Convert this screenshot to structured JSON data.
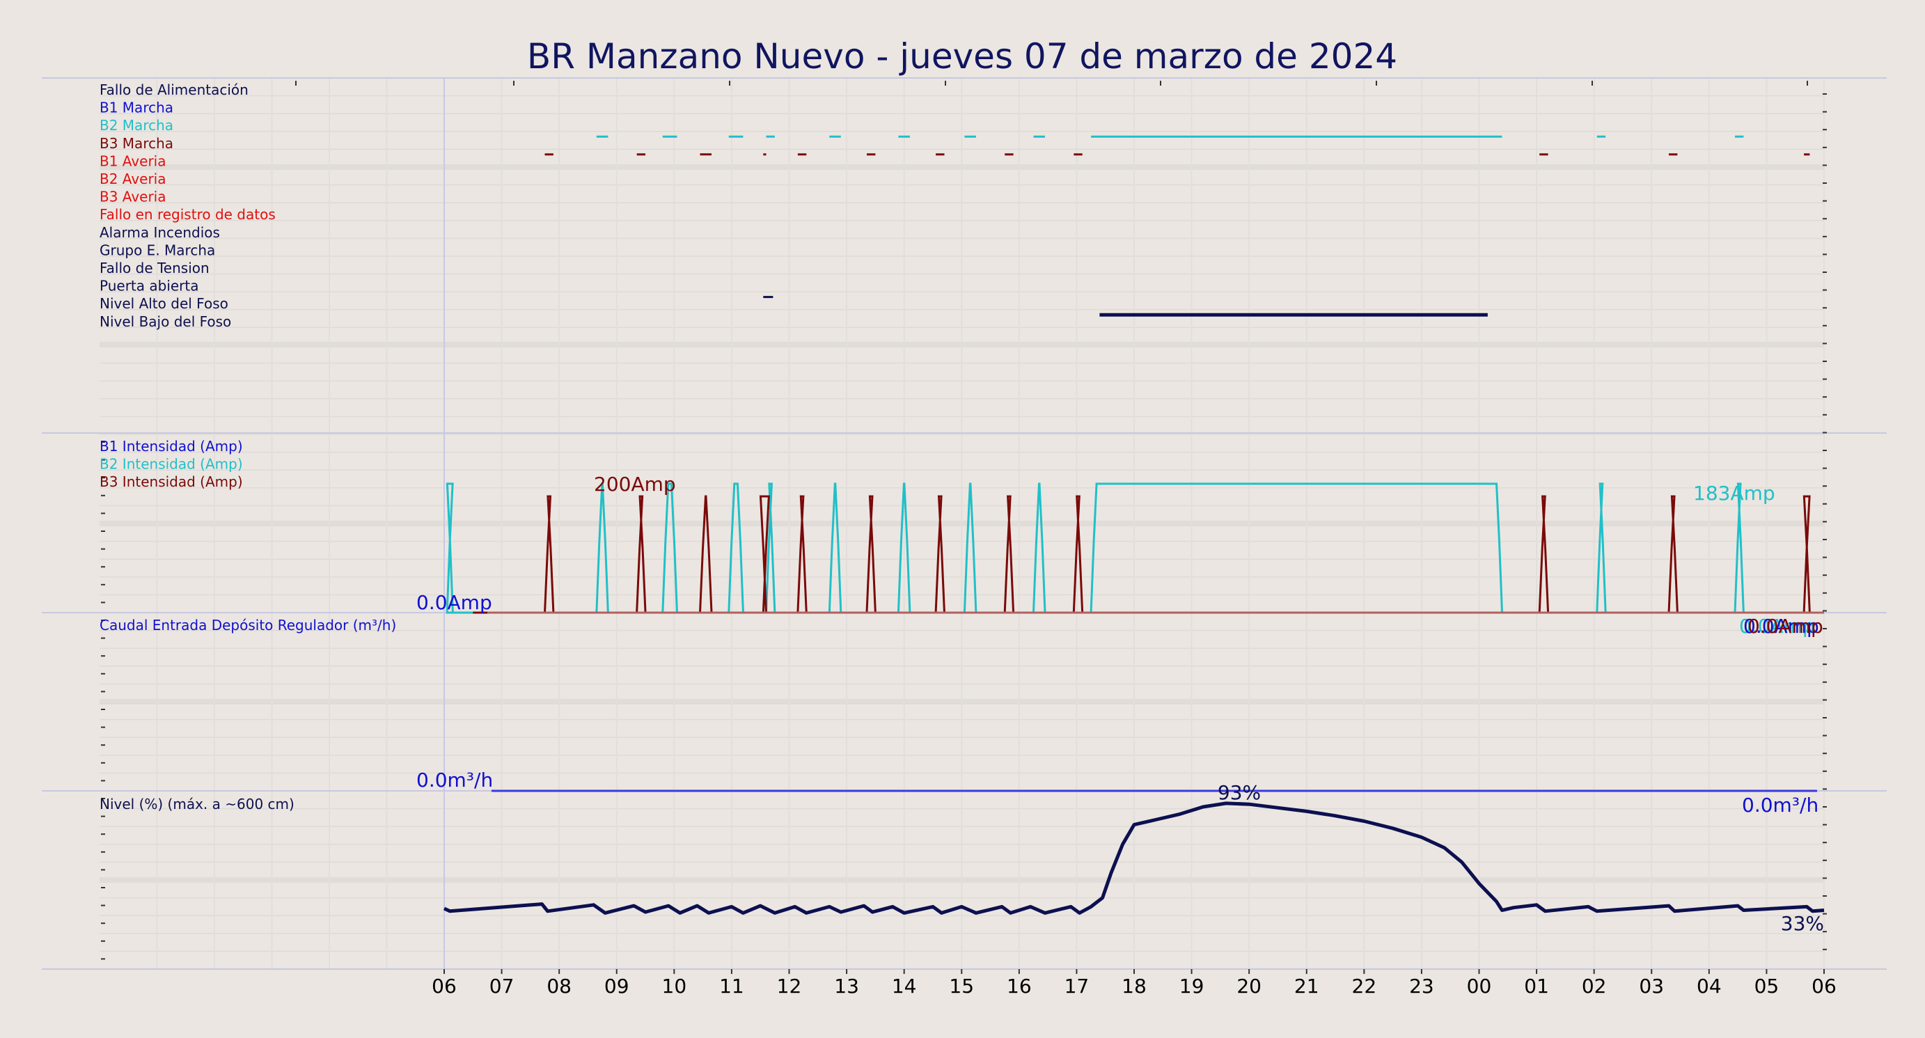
{
  "chart_data": {
    "type": "line",
    "title": "BR Manzano Nuevo   -   jueves 07 de marzo de 2024",
    "colors": {
      "b1": "#1010d0",
      "b2": "#20c0c8",
      "b3": "#7a0a0a",
      "navy": "#0c1050",
      "blue": "#3a3ae0",
      "red": "#e01010",
      "avg": "#b06060"
    },
    "x_ticks": [
      "06",
      "07",
      "08",
      "09",
      "10",
      "11",
      "12",
      "13",
      "14",
      "15",
      "16",
      "17",
      "18",
      "19",
      "20",
      "21",
      "22",
      "23",
      "00",
      "01",
      "02",
      "03",
      "04",
      "05",
      "06"
    ],
    "x_start_hour": 6,
    "digital": {
      "signals": [
        {
          "name": "Fallo de Alimentación",
          "color": "navy"
        },
        {
          "name": "B1 Marcha",
          "color": "b1"
        },
        {
          "name": "B2 Marcha",
          "color": "b2"
        },
        {
          "name": "B3 Marcha",
          "color": "b3"
        },
        {
          "name": "B1 Averia",
          "color": "red"
        },
        {
          "name": "B2 Averia",
          "color": "red"
        },
        {
          "name": "B3 Averia",
          "color": "red"
        },
        {
          "name": "Fallo en registro de datos",
          "color": "red"
        },
        {
          "name": "Alarma Incendios",
          "color": "navy"
        },
        {
          "name": "Grupo E. Marcha",
          "color": "navy"
        },
        {
          "name": "Fallo de Tension",
          "color": "navy"
        },
        {
          "name": "Puerta abierta",
          "color": "navy"
        },
        {
          "name": "Nivel Alto del Foso",
          "color": "navy"
        },
        {
          "name": "Nivel Bajo del Foso",
          "color": "navy"
        }
      ],
      "events": [
        {
          "signal": 2,
          "intervals": [
            [
              8.65,
              8.85
            ],
            [
              9.8,
              10.05
            ],
            [
              10.95,
              11.2
            ],
            [
              11.6,
              11.75
            ],
            [
              12.7,
              12.9
            ],
            [
              13.9,
              14.1
            ],
            [
              15.05,
              15.25
            ],
            [
              16.25,
              16.45
            ],
            [
              17.25,
              24.4
            ],
            [
              26.05,
              26.2
            ],
            [
              28.45,
              28.6
            ]
          ]
        },
        {
          "signal": 3,
          "intervals": [
            [
              7.75,
              7.9
            ],
            [
              9.35,
              9.5
            ],
            [
              10.45,
              10.65
            ],
            [
              11.55,
              11.6
            ],
            [
              12.15,
              12.3
            ],
            [
              13.35,
              13.5
            ],
            [
              14.55,
              14.7
            ],
            [
              15.75,
              15.9
            ],
            [
              16.95,
              17.1
            ],
            [
              25.05,
              25.2
            ],
            [
              27.3,
              27.45
            ],
            [
              29.65,
              29.75
            ]
          ]
        },
        {
          "signal": 11,
          "intervals": [
            [
              11.55,
              11.72
            ]
          ]
        },
        {
          "signal": 12,
          "intervals": [
            [
              17.4,
              24.15
            ]
          ]
        }
      ]
    },
    "current": {
      "series_labels": [
        "B1 Intensidad (Amp)",
        "B2 Intensidad (Amp)",
        "B3 Intensidad (Amp)"
      ],
      "ylim": [
        0,
        255
      ],
      "level_amp": 183,
      "b2_intervals": [
        [
          6.05,
          6.15
        ],
        [
          8.65,
          8.85
        ],
        [
          9.8,
          10.05
        ],
        [
          10.95,
          11.2
        ],
        [
          11.6,
          11.75
        ],
        [
          12.7,
          12.9
        ],
        [
          13.9,
          14.1
        ],
        [
          15.05,
          15.25
        ],
        [
          16.25,
          16.45
        ],
        [
          17.25,
          24.4
        ],
        [
          26.05,
          26.2
        ],
        [
          28.45,
          28.6
        ]
      ],
      "b3_intervals": [
        [
          7.75,
          7.9
        ],
        [
          9.35,
          9.5
        ],
        [
          10.45,
          10.65
        ],
        [
          11.55,
          11.6
        ],
        [
          12.15,
          12.3
        ],
        [
          13.35,
          13.5
        ],
        [
          14.55,
          14.7
        ],
        [
          15.75,
          15.9
        ],
        [
          16.95,
          17.1
        ],
        [
          25.05,
          25.2
        ],
        [
          27.3,
          27.45
        ],
        [
          29.65,
          29.75
        ]
      ],
      "annotations": {
        "max_b3": "200Amp",
        "max_b2": "183Amp",
        "zero": "0.0Amp",
        "end_a": "0.0Amp",
        "end_b": "0.0Amp",
        "end_c": "0.0Amp"
      }
    },
    "flow": {
      "label": "Caudal Entrada Depósito Regulador (m³/h)",
      "value": 0.0,
      "annotations": {
        "zero": "0.0m³/h",
        "end": "0.0m³/h"
      }
    },
    "level": {
      "label": "Nivel (%) (máx. a ~600 cm)",
      "ylim": [
        0,
        100
      ],
      "points": [
        [
          6.0,
          34
        ],
        [
          6.1,
          32.5
        ],
        [
          7.7,
          36.5
        ],
        [
          7.8,
          32.5
        ],
        [
          8.6,
          36
        ],
        [
          8.8,
          31.5
        ],
        [
          9.3,
          35.5
        ],
        [
          9.5,
          32
        ],
        [
          9.9,
          35.5
        ],
        [
          10.1,
          31.5
        ],
        [
          10.4,
          35.5
        ],
        [
          10.6,
          31.5
        ],
        [
          11.0,
          35
        ],
        [
          11.2,
          31.5
        ],
        [
          11.5,
          35.5
        ],
        [
          11.75,
          31.5
        ],
        [
          12.1,
          35
        ],
        [
          12.3,
          31.5
        ],
        [
          12.7,
          35
        ],
        [
          12.9,
          32
        ],
        [
          13.3,
          35.5
        ],
        [
          13.45,
          32
        ],
        [
          13.8,
          35
        ],
        [
          14.0,
          31.5
        ],
        [
          14.5,
          35
        ],
        [
          14.65,
          31.5
        ],
        [
          15.0,
          35
        ],
        [
          15.25,
          31.5
        ],
        [
          15.7,
          35
        ],
        [
          15.85,
          31.5
        ],
        [
          16.2,
          35
        ],
        [
          16.45,
          31.5
        ],
        [
          16.9,
          35
        ],
        [
          17.05,
          31.5
        ],
        [
          17.25,
          35
        ],
        [
          17.45,
          40
        ],
        [
          17.6,
          54
        ],
        [
          17.8,
          70
        ],
        [
          18.0,
          81
        ],
        [
          18.4,
          84
        ],
        [
          18.8,
          87
        ],
        [
          19.2,
          91
        ],
        [
          19.6,
          93
        ],
        [
          20.0,
          92.5
        ],
        [
          20.5,
          90.5
        ],
        [
          21.0,
          88.5
        ],
        [
          21.5,
          86
        ],
        [
          22.0,
          83
        ],
        [
          22.5,
          79
        ],
        [
          23.0,
          74
        ],
        [
          23.4,
          68
        ],
        [
          23.7,
          60
        ],
        [
          24.0,
          48
        ],
        [
          24.3,
          38
        ],
        [
          24.4,
          33
        ],
        [
          24.6,
          34.5
        ],
        [
          25.0,
          36
        ],
        [
          25.15,
          32.5
        ],
        [
          25.9,
          35
        ],
        [
          26.05,
          32.5
        ],
        [
          27.3,
          35.5
        ],
        [
          27.4,
          32.5
        ],
        [
          28.5,
          35.5
        ],
        [
          28.6,
          33
        ],
        [
          29.7,
          35
        ],
        [
          29.8,
          32.5
        ],
        [
          30.0,
          33
        ]
      ],
      "annotations": {
        "max": "93%",
        "last": "33%"
      }
    }
  }
}
